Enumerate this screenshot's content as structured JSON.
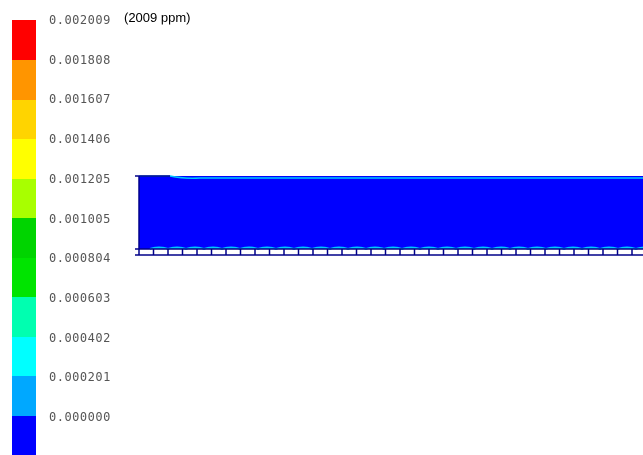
{
  "legend": {
    "colors": [
      "#0000ff",
      "#00a8ff",
      "#00ffff",
      "#00ffb0",
      "#00e400",
      "#00d400",
      "#a8ff00",
      "#ffff00",
      "#ffd400",
      "#ff9500",
      "#ff0000"
    ],
    "labels": [
      "0.002009",
      "0.001808",
      "0.001607",
      "0.001406",
      "0.001205",
      "0.001005",
      "0.000804",
      "0.000603",
      "0.000402",
      "0.000201",
      "0.000000"
    ]
  },
  "annotation": "(2009 ppm)",
  "field": {
    "fill_color": "#0000ff",
    "edge_color": "#00c8ff",
    "outline_color": "#000088"
  }
}
